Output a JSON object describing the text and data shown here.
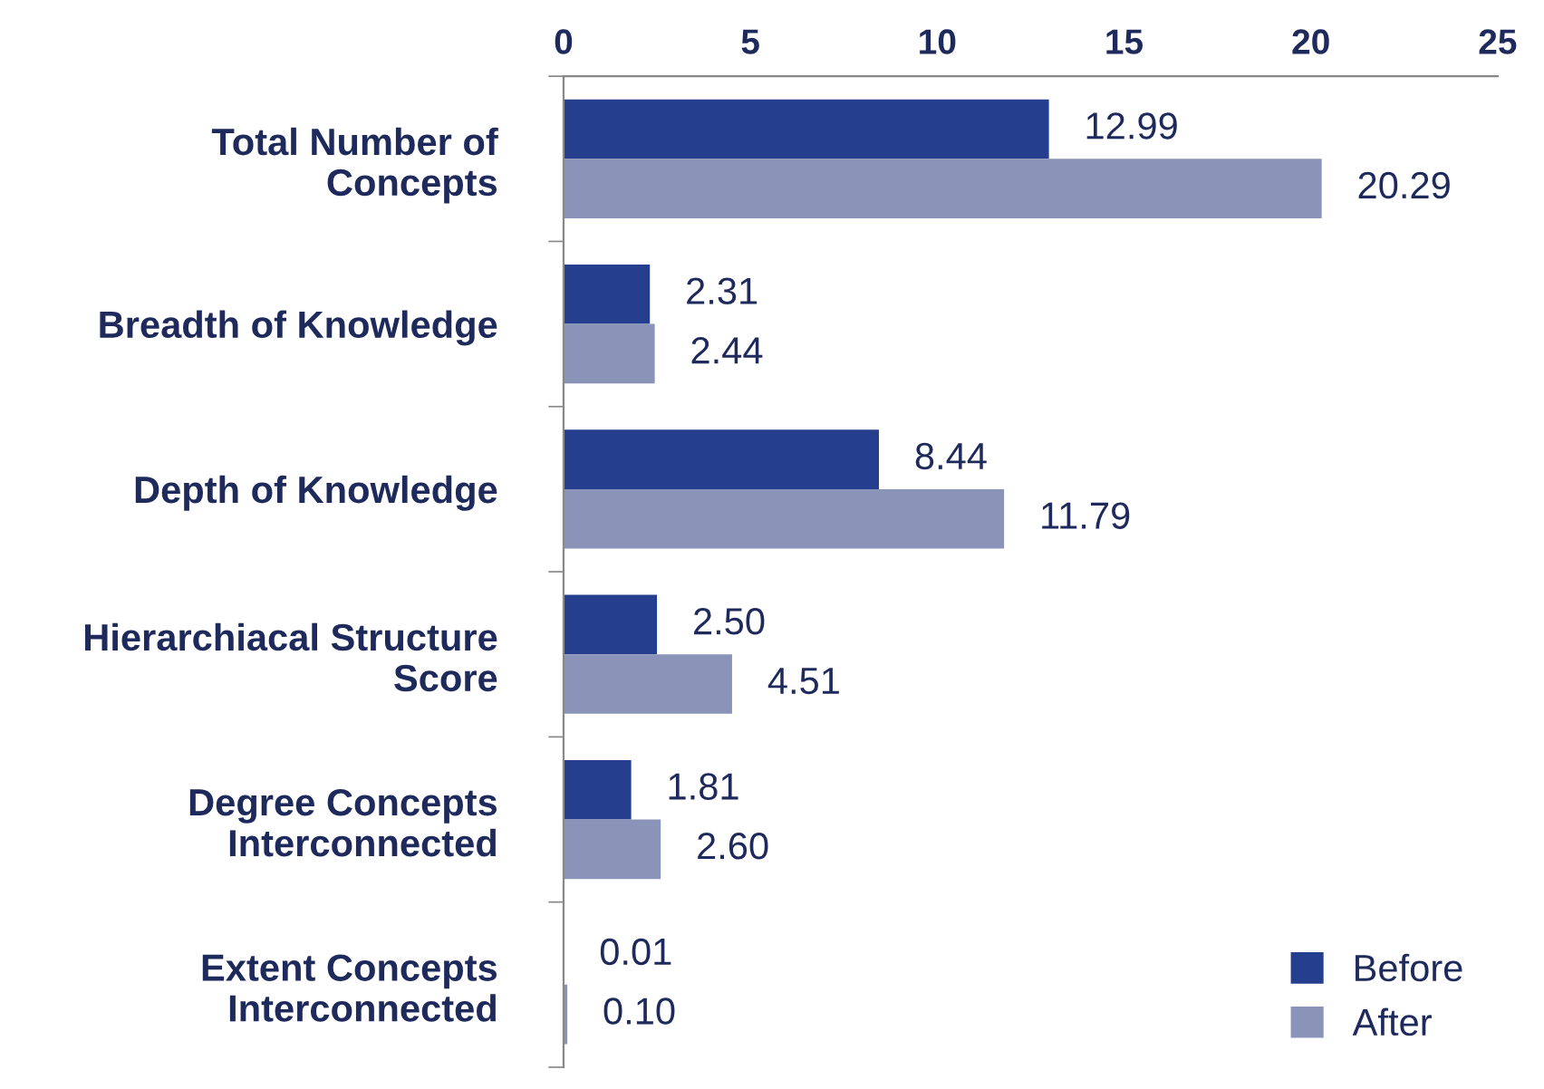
{
  "chart_data": {
    "type": "bar",
    "orientation": "horizontal",
    "categories": [
      "Total Number of\nConcepts",
      "Breadth of Knowledge",
      "Depth of Knowledge",
      "Hierarchiacal Structure\nScore",
      "Degree Concepts\nInterconnected",
      "Extent Concepts\nInterconnected"
    ],
    "series": [
      {
        "name": "Before",
        "color": "#253f8e",
        "values": [
          12.99,
          2.31,
          8.44,
          2.5,
          1.81,
          0.01
        ],
        "value_labels": [
          "12.99",
          "2.31",
          "8.44",
          "2.50",
          "1.81",
          "0.01"
        ]
      },
      {
        "name": "After",
        "color": "#8a93b8",
        "values": [
          20.29,
          2.44,
          11.79,
          4.51,
          2.6,
          0.1
        ],
        "value_labels": [
          "20.29",
          "2.44",
          "11.79",
          "4.51",
          "2.60",
          "0.10"
        ]
      }
    ],
    "xlim": [
      0,
      25
    ],
    "xticks": [
      0,
      5,
      10,
      15,
      20,
      25
    ],
    "grid": false,
    "legend": "bottom right"
  }
}
